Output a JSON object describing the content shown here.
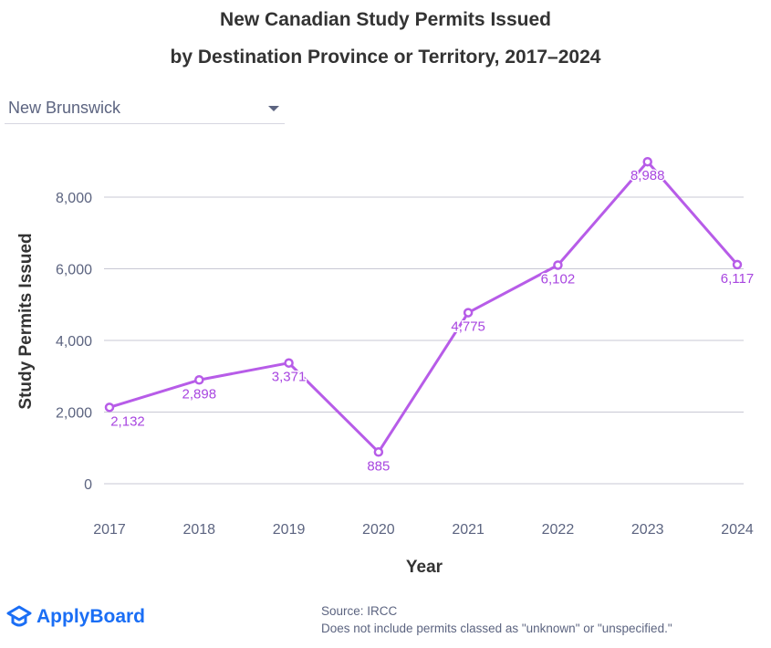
{
  "title_line1": "New Canadian Study Permits Issued",
  "title_line2": "by Destination Province or Territory, 2017–2024",
  "dropdown": {
    "selected": "New Brunswick"
  },
  "footer": {
    "brand": "ApplyBoard",
    "source": "Source: IRCC",
    "note": "Does not include permits classed as \"unknown\" or \"unspecified.\""
  },
  "colors": {
    "line": "#b75ce8",
    "label": "#a846e0",
    "grid": "#c8c8d4",
    "axis_text": "#5c6480"
  },
  "chart_data": {
    "type": "line",
    "title": "New Canadian Study Permits Issued by Destination Province or Territory, 2017–2024",
    "xlabel": "Year",
    "ylabel": "Study Permits Issued",
    "x": [
      "2017",
      "2018",
      "2019",
      "2020",
      "2021",
      "2022",
      "2023",
      "2024"
    ],
    "series": [
      {
        "name": "New Brunswick",
        "values": [
          2132,
          2898,
          3371,
          885,
          4775,
          6102,
          8988,
          6117
        ]
      }
    ],
    "data_labels": [
      "2,132",
      "2,898",
      "3,371",
      "885",
      "4,775",
      "6,102",
      "8,988",
      "6,117"
    ],
    "yticks": [
      0,
      2000,
      4000,
      6000,
      8000
    ],
    "ytick_labels": [
      "0",
      "2,000",
      "4,000",
      "6,000",
      "8,000"
    ],
    "ylim": [
      0,
      8000
    ],
    "grid": true,
    "legend": "none"
  }
}
